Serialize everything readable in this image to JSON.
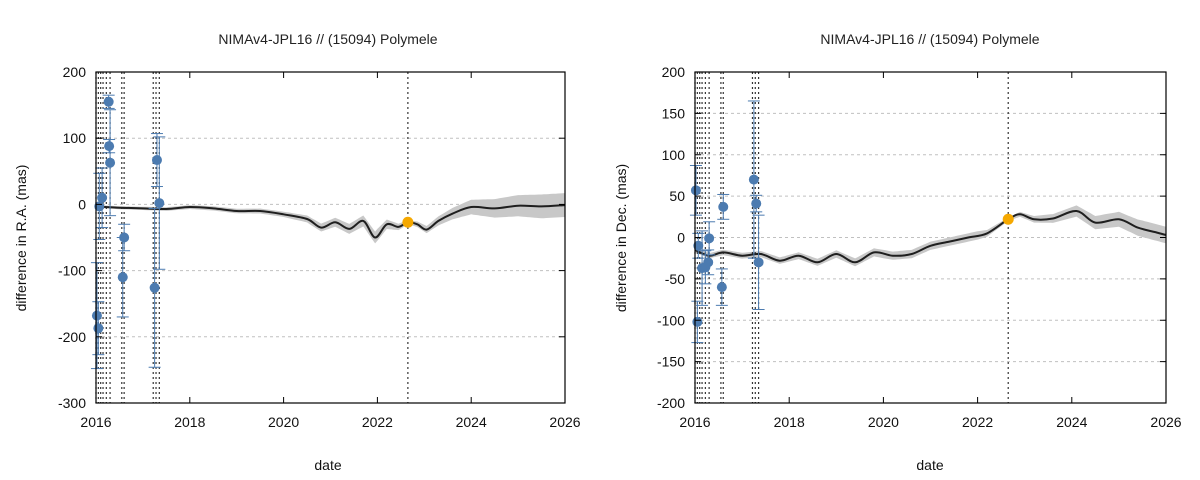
{
  "colors": {
    "model_line": "#1f1f1f",
    "uncertainty_band": "#c8c8c8",
    "observation": "#4c7bb0",
    "error_bar": "#4c7bb0",
    "epoch_marker": "#f5a800",
    "grid": "#c0c0c0",
    "vline": "#333333"
  },
  "chart_data": [
    {
      "type": "scatter",
      "title": "NIMAv4-JPL16 // (15094) Polymele",
      "xlabel": "date",
      "ylabel": "difference in R.A. (mas)",
      "xlim": [
        2016,
        2026
      ],
      "ylim": [
        -300,
        200
      ],
      "xticks": [
        2016,
        2018,
        2020,
        2022,
        2024,
        2026
      ],
      "yticks": [
        -300,
        -200,
        -100,
        0,
        100,
        200
      ],
      "grid": true,
      "vlines": [
        2016.0,
        2016.05,
        2016.1,
        2016.15,
        2016.22,
        2016.3,
        2016.55,
        2016.6,
        2017.22,
        2017.28,
        2017.35,
        2022.65
      ],
      "highlight": {
        "x": 2022.65,
        "y": -27
      },
      "model_line": {
        "x": [
          2016.0,
          2016.5,
          2017.0,
          2017.5,
          2018.0,
          2018.5,
          2019.0,
          2019.5,
          2020.0,
          2020.5,
          2020.8,
          2021.1,
          2021.4,
          2021.7,
          2021.95,
          2022.2,
          2022.45,
          2022.65,
          2022.85,
          2023.05,
          2023.3,
          2023.6,
          2024.0,
          2024.5,
          2025.0,
          2025.5,
          2026.0
        ],
        "y": [
          -3,
          -5,
          -6,
          -7,
          -4,
          -6,
          -10,
          -10,
          -15,
          -22,
          -35,
          -27,
          -37,
          -25,
          -50,
          -30,
          -34,
          -27,
          -30,
          -38,
          -25,
          -14,
          -4,
          -6,
          -2,
          -3,
          -1
        ]
      },
      "band_halfwidth": {
        "x": [
          2016.0,
          2018.0,
          2020.0,
          2022.0,
          2022.65,
          2023.5,
          2024.5,
          2025.5,
          2026.0
        ],
        "y": [
          2,
          3,
          4,
          9,
          3,
          8,
          14,
          18,
          18
        ]
      },
      "observations": [
        {
          "x": 2016.02,
          "y": -168,
          "err": 80
        },
        {
          "x": 2016.05,
          "y": -187,
          "err": 40
        },
        {
          "x": 2016.07,
          "y": -3,
          "err": 50
        },
        {
          "x": 2016.13,
          "y": 10,
          "err": 45
        },
        {
          "x": 2016.27,
          "y": 155,
          "err": 10
        },
        {
          "x": 2016.28,
          "y": 88,
          "err": 10
        },
        {
          "x": 2016.3,
          "y": 63,
          "err": 80
        },
        {
          "x": 2016.57,
          "y": -110,
          "err": 60
        },
        {
          "x": 2016.6,
          "y": -50,
          "err": 20
        },
        {
          "x": 2017.25,
          "y": -126,
          "err": 120
        },
        {
          "x": 2017.3,
          "y": 67,
          "err": 40
        },
        {
          "x": 2017.35,
          "y": 2,
          "err": 100
        }
      ]
    },
    {
      "type": "scatter",
      "title": "NIMAv4-JPL16 // (15094) Polymele",
      "xlabel": "date",
      "ylabel": "difference in Dec. (mas)",
      "xlim": [
        2016,
        2026
      ],
      "ylim": [
        -200,
        200
      ],
      "xticks": [
        2016,
        2018,
        2020,
        2022,
        2024,
        2026
      ],
      "yticks": [
        -200,
        -150,
        -100,
        -50,
        0,
        50,
        100,
        150,
        200
      ],
      "grid": true,
      "vlines": [
        2016.0,
        2016.05,
        2016.1,
        2016.15,
        2016.22,
        2016.3,
        2016.55,
        2016.6,
        2017.22,
        2017.28,
        2017.35,
        2022.65
      ],
      "highlight": {
        "x": 2022.65,
        "y": 22
      },
      "model_line": {
        "x": [
          2016.0,
          2016.3,
          2016.6,
          2017.0,
          2017.4,
          2017.8,
          2018.2,
          2018.6,
          2019.0,
          2019.4,
          2019.8,
          2020.2,
          2020.6,
          2021.0,
          2021.4,
          2021.8,
          2022.2,
          2022.65,
          2022.9,
          2023.2,
          2023.6,
          2024.1,
          2024.5,
          2025.0,
          2025.4,
          2025.8,
          2026.0
        ],
        "y": [
          -15,
          -22,
          -18,
          -22,
          -20,
          -28,
          -22,
          -30,
          -20,
          -30,
          -18,
          -22,
          -20,
          -10,
          -5,
          0,
          5,
          22,
          28,
          22,
          23,
          32,
          18,
          22,
          12,
          6,
          3
        ]
      },
      "band_halfwidth": {
        "x": [
          2016.0,
          2018.0,
          2020.0,
          2022.0,
          2022.65,
          2023.5,
          2024.5,
          2025.5,
          2026.0
        ],
        "y": [
          3,
          4,
          5,
          5,
          2,
          5,
          8,
          10,
          10
        ]
      },
      "observations": [
        {
          "x": 2016.02,
          "y": 57,
          "err": 30
        },
        {
          "x": 2016.05,
          "y": -102,
          "err": 25
        },
        {
          "x": 2016.07,
          "y": -10,
          "err": 15
        },
        {
          "x": 2016.15,
          "y": -37,
          "err": 45
        },
        {
          "x": 2016.22,
          "y": -36,
          "err": 20
        },
        {
          "x": 2016.28,
          "y": -30,
          "err": 15
        },
        {
          "x": 2016.3,
          "y": -1,
          "err": 20
        },
        {
          "x": 2016.57,
          "y": -60,
          "err": 22
        },
        {
          "x": 2016.6,
          "y": 37,
          "err": 15
        },
        {
          "x": 2017.25,
          "y": 70,
          "err": 95
        },
        {
          "x": 2017.3,
          "y": 41,
          "err": 10
        },
        {
          "x": 2017.35,
          "y": -30,
          "err": 57
        }
      ]
    }
  ]
}
